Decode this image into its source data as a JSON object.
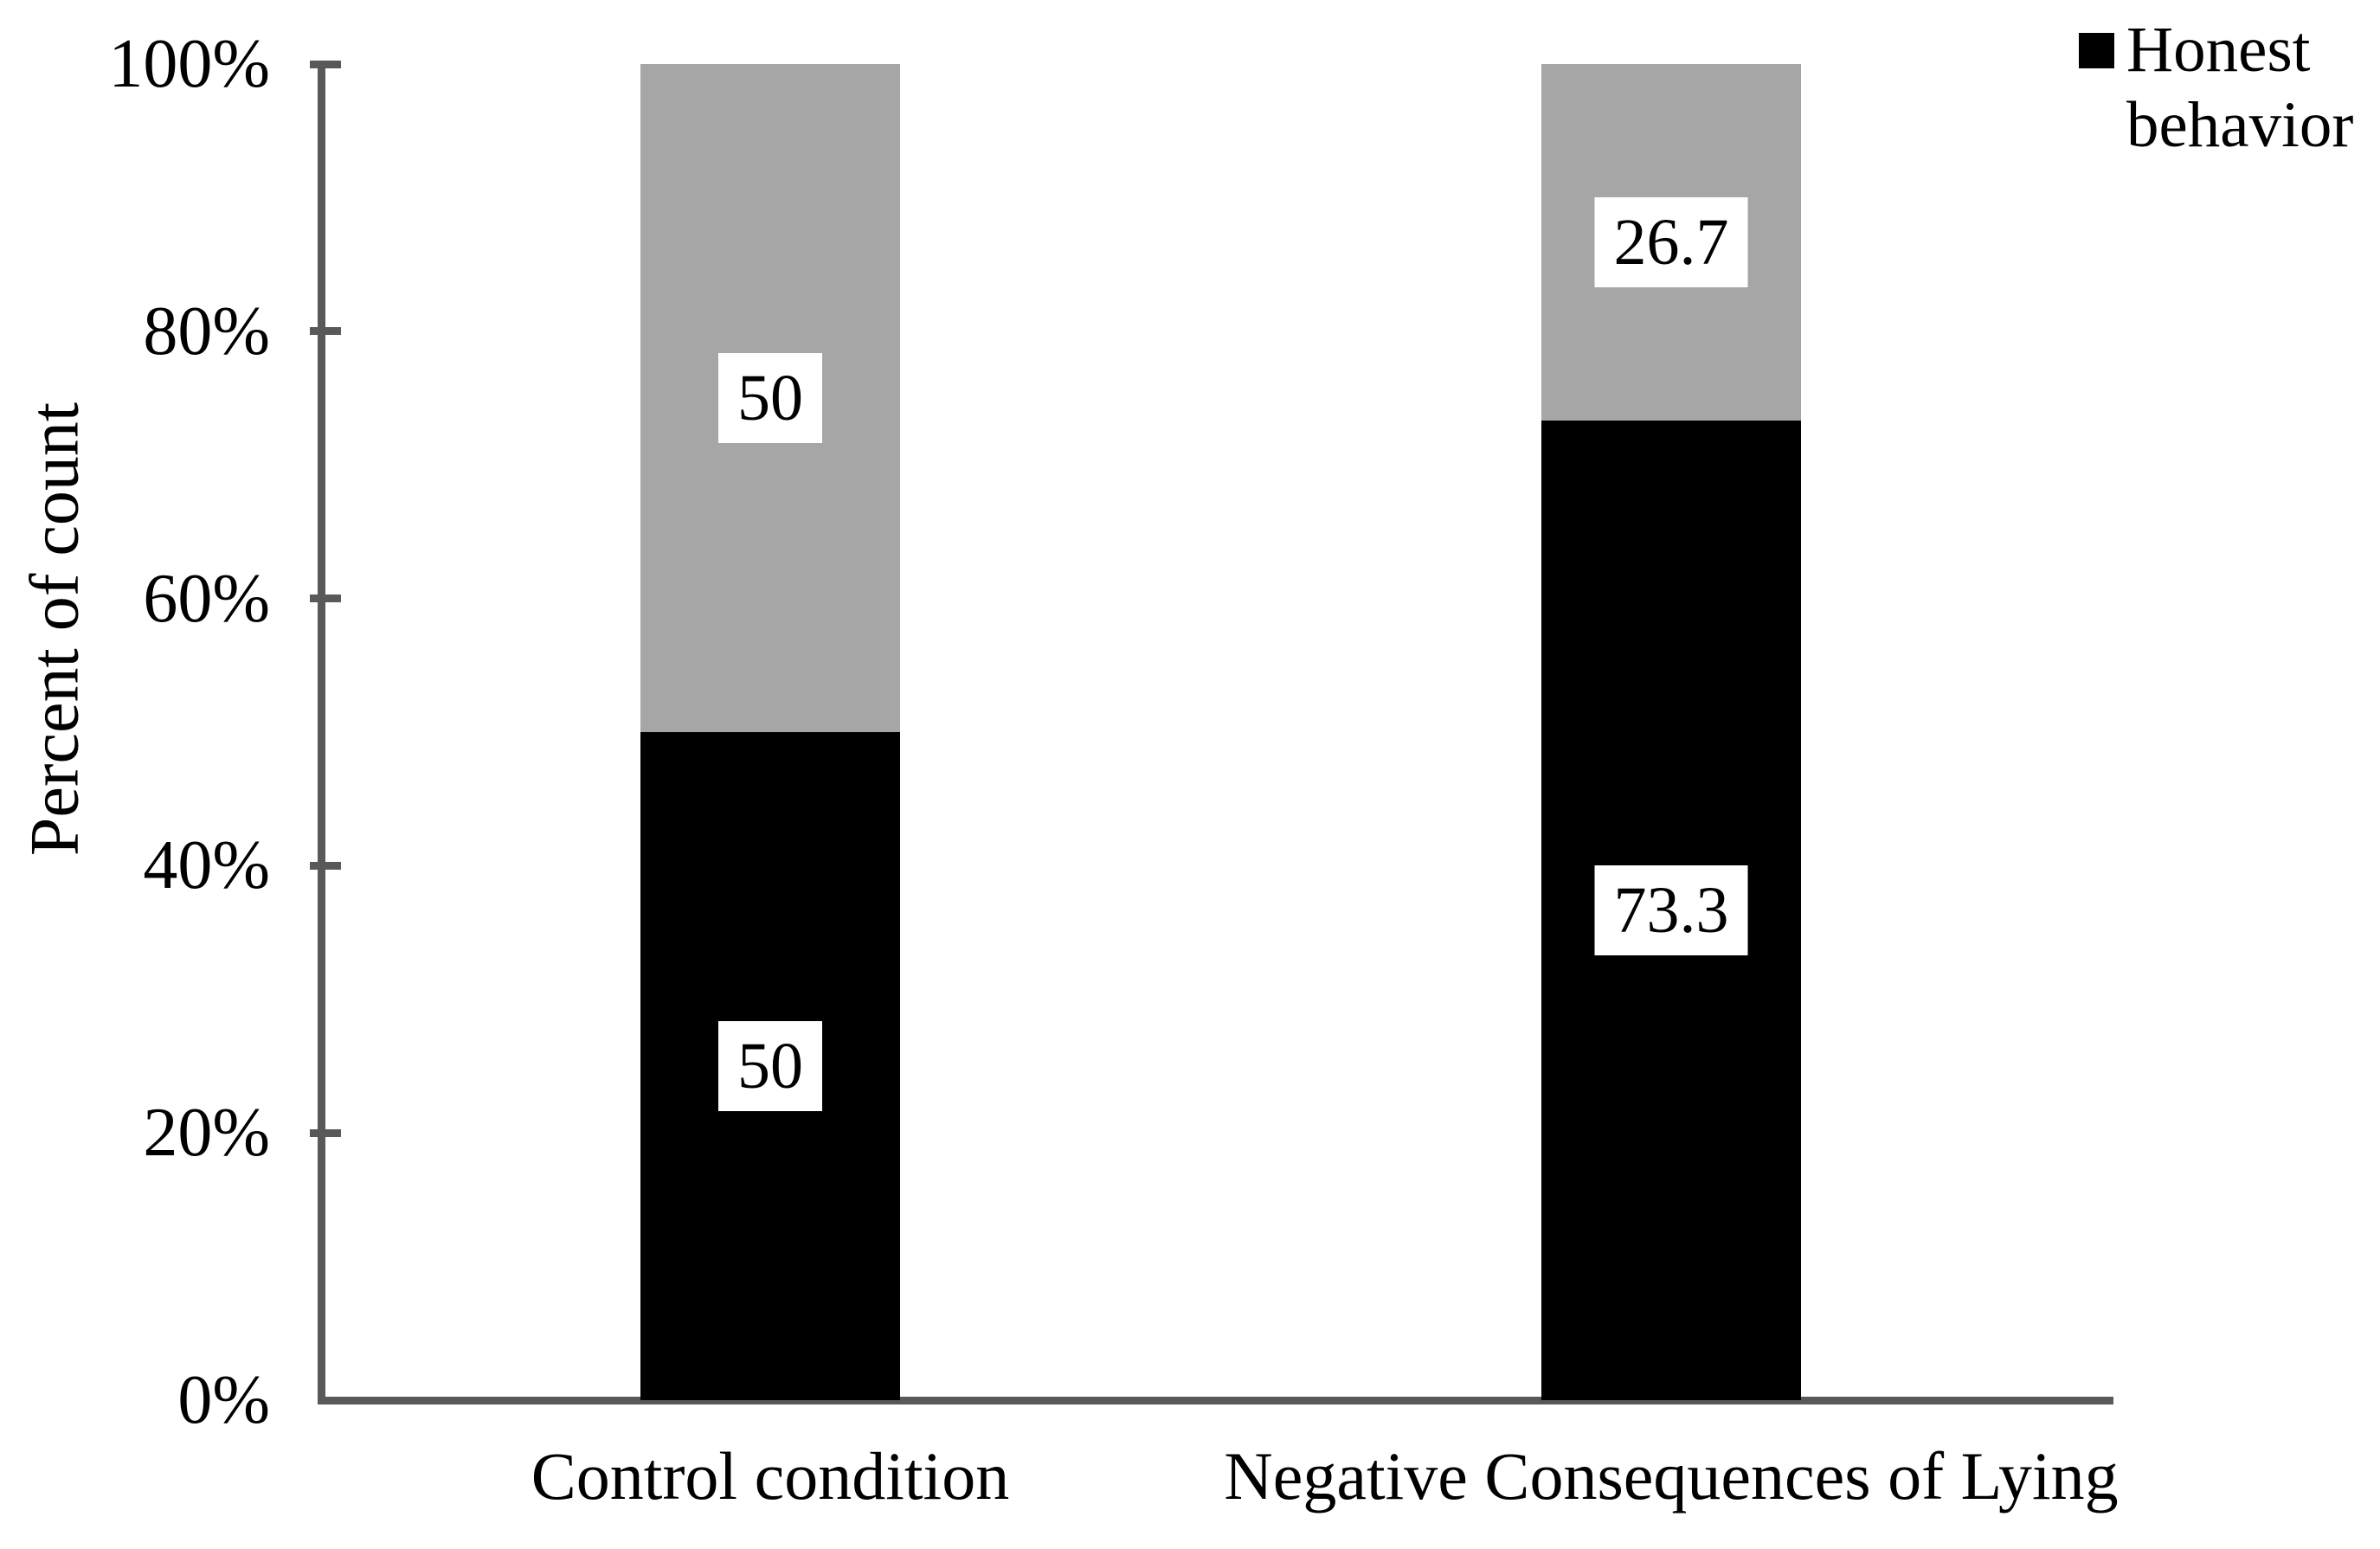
{
  "chart_data": {
    "type": "bar",
    "subtype": "stacked-percent-column",
    "title": "",
    "ylabel": "Percent of count",
    "xlabel": "",
    "ylim": [
      0,
      100
    ],
    "grid": false,
    "y_ticks": [
      {
        "value": 0,
        "label": "0%"
      },
      {
        "value": 20,
        "label": "20%"
      },
      {
        "value": 40,
        "label": "40%"
      },
      {
        "value": 60,
        "label": "60%"
      },
      {
        "value": 80,
        "label": "80%"
      },
      {
        "value": 100,
        "label": "100%"
      }
    ],
    "categories": [
      "Control condition",
      "Negative Consequences of Lying"
    ],
    "series": [
      {
        "name": "Honest behavior",
        "color": "#000000",
        "in_legend": true,
        "values": [
          50,
          73.3
        ],
        "data_labels": [
          "50",
          "73.3"
        ]
      },
      {
        "name": "",
        "color": "#a6a6a6",
        "in_legend": false,
        "values": [
          50,
          26.7
        ],
        "data_labels": [
          "50",
          "26.7"
        ]
      }
    ],
    "legend": {
      "position": "top-right",
      "entries": [
        {
          "label": "Honest behavior",
          "lines": [
            "Honest",
            "behavior"
          ],
          "swatch_color": "#000000"
        }
      ]
    },
    "colors": {
      "axis": "#595959",
      "black_series": "#000000",
      "gray_series": "#a6a6a6",
      "data_label_background": "#ffffff",
      "text": "#000000",
      "background": "#ffffff"
    }
  }
}
